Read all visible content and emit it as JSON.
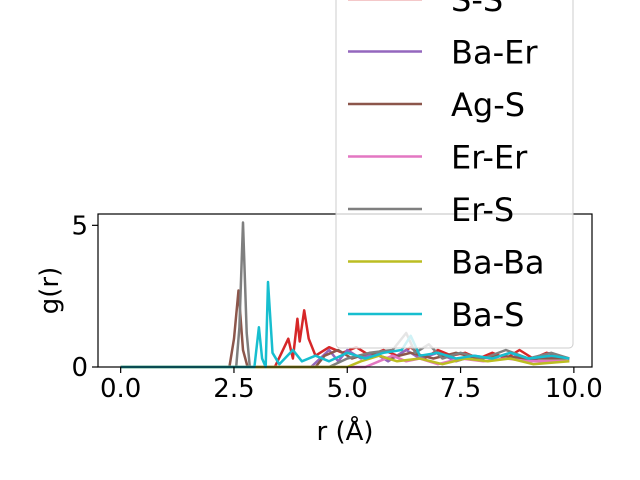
{
  "chart_data": {
    "type": "line",
    "xlabel": "r (Å)",
    "ylabel": "g(r)",
    "xlim": [
      -0.5,
      10.4
    ],
    "ylim": [
      0,
      5.4
    ],
    "xticks": [
      0.0,
      2.5,
      5.0,
      7.5,
      10.0
    ],
    "xtick_labels": [
      "0.0",
      "2.5",
      "5.0",
      "7.5",
      "10.0"
    ],
    "yticks": [
      0,
      5
    ],
    "ytick_labels": [
      "0",
      "5"
    ],
    "legend_position": "upper-right",
    "series": [
      {
        "name": "S-S",
        "color": "#d62728",
        "points": [
          [
            0,
            0
          ],
          [
            3.4,
            0
          ],
          [
            3.55,
            0.5
          ],
          [
            3.7,
            1.0
          ],
          [
            3.8,
            0.3
          ],
          [
            3.9,
            1.7
          ],
          [
            3.95,
            0.9
          ],
          [
            4.05,
            2.0
          ],
          [
            4.15,
            1.0
          ],
          [
            4.3,
            0.4
          ],
          [
            4.6,
            0.7
          ],
          [
            4.9,
            0.5
          ],
          [
            5.2,
            0.7
          ],
          [
            5.5,
            0.4
          ],
          [
            5.8,
            0.6
          ],
          [
            6.1,
            0.4
          ],
          [
            6.4,
            0.7
          ],
          [
            6.7,
            0.3
          ],
          [
            7.0,
            0.6
          ],
          [
            7.3,
            0.4
          ],
          [
            7.6,
            0.5
          ],
          [
            7.9,
            0.3
          ],
          [
            8.2,
            0.5
          ],
          [
            8.5,
            0.3
          ],
          [
            8.8,
            0.6
          ],
          [
            9.1,
            0.3
          ],
          [
            9.4,
            0.5
          ],
          [
            9.9,
            0.3
          ]
        ]
      },
      {
        "name": "Ba-Er",
        "color": "#9467bd",
        "points": [
          [
            0,
            0
          ],
          [
            4.2,
            0
          ],
          [
            4.4,
            0.3
          ],
          [
            4.6,
            0.6
          ],
          [
            4.8,
            0.2
          ],
          [
            5.0,
            0.6
          ],
          [
            5.3,
            0.3
          ],
          [
            5.6,
            0.5
          ],
          [
            5.9,
            0.2
          ],
          [
            6.3,
            0.6
          ],
          [
            6.6,
            0.3
          ],
          [
            7.0,
            0.5
          ],
          [
            7.4,
            0.2
          ],
          [
            7.8,
            0.4
          ],
          [
            8.2,
            0.3
          ],
          [
            8.6,
            0.5
          ],
          [
            9.0,
            0.2
          ],
          [
            9.4,
            0.4
          ],
          [
            9.9,
            0.3
          ]
        ]
      },
      {
        "name": "Ag-S",
        "color": "#8c564b",
        "points": [
          [
            0,
            0
          ],
          [
            2.4,
            0
          ],
          [
            2.5,
            1.0
          ],
          [
            2.6,
            2.7
          ],
          [
            2.7,
            0.6
          ],
          [
            2.8,
            0
          ],
          [
            4.3,
            0
          ],
          [
            4.5,
            0.4
          ],
          [
            4.8,
            0.6
          ],
          [
            5.1,
            0.3
          ],
          [
            5.5,
            0.5
          ],
          [
            5.9,
            0.3
          ],
          [
            6.4,
            0.5
          ],
          [
            6.9,
            0.3
          ],
          [
            7.4,
            0.5
          ],
          [
            7.9,
            0.3
          ],
          [
            8.4,
            0.4
          ],
          [
            8.9,
            0.3
          ],
          [
            9.9,
            0.3
          ]
        ]
      },
      {
        "name": "Er-Er",
        "color": "#e377c2",
        "points": [
          [
            0,
            0
          ],
          [
            5.4,
            0
          ],
          [
            5.7,
            0.2
          ],
          [
            6.0,
            0.4
          ],
          [
            6.3,
            0.2
          ],
          [
            6.6,
            0.3
          ],
          [
            7.0,
            0.1
          ],
          [
            7.5,
            0.3
          ],
          [
            8.0,
            0.2
          ],
          [
            8.5,
            0.3
          ],
          [
            9.0,
            0.2
          ],
          [
            9.9,
            0.2
          ]
        ]
      },
      {
        "name": "Er-S",
        "color": "#7f7f7f",
        "points": [
          [
            0,
            0
          ],
          [
            2.55,
            0
          ],
          [
            2.62,
            1.4
          ],
          [
            2.7,
            5.1
          ],
          [
            2.78,
            1.2
          ],
          [
            2.85,
            0
          ],
          [
            4.6,
            0
          ],
          [
            5.0,
            0.3
          ],
          [
            5.5,
            0.5
          ],
          [
            6.0,
            0.6
          ],
          [
            6.3,
            1.2
          ],
          [
            6.5,
            0.5
          ],
          [
            6.8,
            0.8
          ],
          [
            7.1,
            0.3
          ],
          [
            7.5,
            0.5
          ],
          [
            8.0,
            0.3
          ],
          [
            8.5,
            0.6
          ],
          [
            9.0,
            0.3
          ],
          [
            9.5,
            0.5
          ],
          [
            9.9,
            0.3
          ]
        ]
      },
      {
        "name": "Ba-Ba",
        "color": "#bcbd22",
        "points": [
          [
            0,
            0
          ],
          [
            5.0,
            0
          ],
          [
            5.3,
            0.2
          ],
          [
            5.7,
            0.4
          ],
          [
            6.1,
            0.2
          ],
          [
            6.6,
            0.3
          ],
          [
            7.1,
            0.1
          ],
          [
            7.6,
            0.3
          ],
          [
            8.1,
            0.2
          ],
          [
            8.6,
            0.3
          ],
          [
            9.1,
            0.1
          ],
          [
            9.9,
            0.2
          ]
        ]
      },
      {
        "name": "Ba-S",
        "color": "#17becf",
        "points": [
          [
            0,
            0
          ],
          [
            2.95,
            0
          ],
          [
            3.05,
            1.4
          ],
          [
            3.12,
            0.3
          ],
          [
            3.2,
            0
          ],
          [
            3.25,
            3.0
          ],
          [
            3.35,
            0.5
          ],
          [
            3.5,
            0.1
          ],
          [
            3.8,
            0.6
          ],
          [
            4.0,
            0.2
          ],
          [
            4.3,
            0.4
          ],
          [
            4.6,
            0.2
          ],
          [
            5.0,
            0.5
          ],
          [
            5.4,
            0.3
          ],
          [
            5.8,
            0.5
          ],
          [
            6.2,
            0.6
          ],
          [
            6.4,
            1.1
          ],
          [
            6.6,
            0.4
          ],
          [
            7.0,
            0.5
          ],
          [
            7.4,
            0.3
          ],
          [
            7.8,
            0.4
          ],
          [
            8.2,
            0.3
          ],
          [
            8.6,
            0.5
          ],
          [
            9.0,
            0.3
          ],
          [
            9.5,
            0.4
          ],
          [
            9.9,
            0.3
          ]
        ]
      }
    ]
  }
}
